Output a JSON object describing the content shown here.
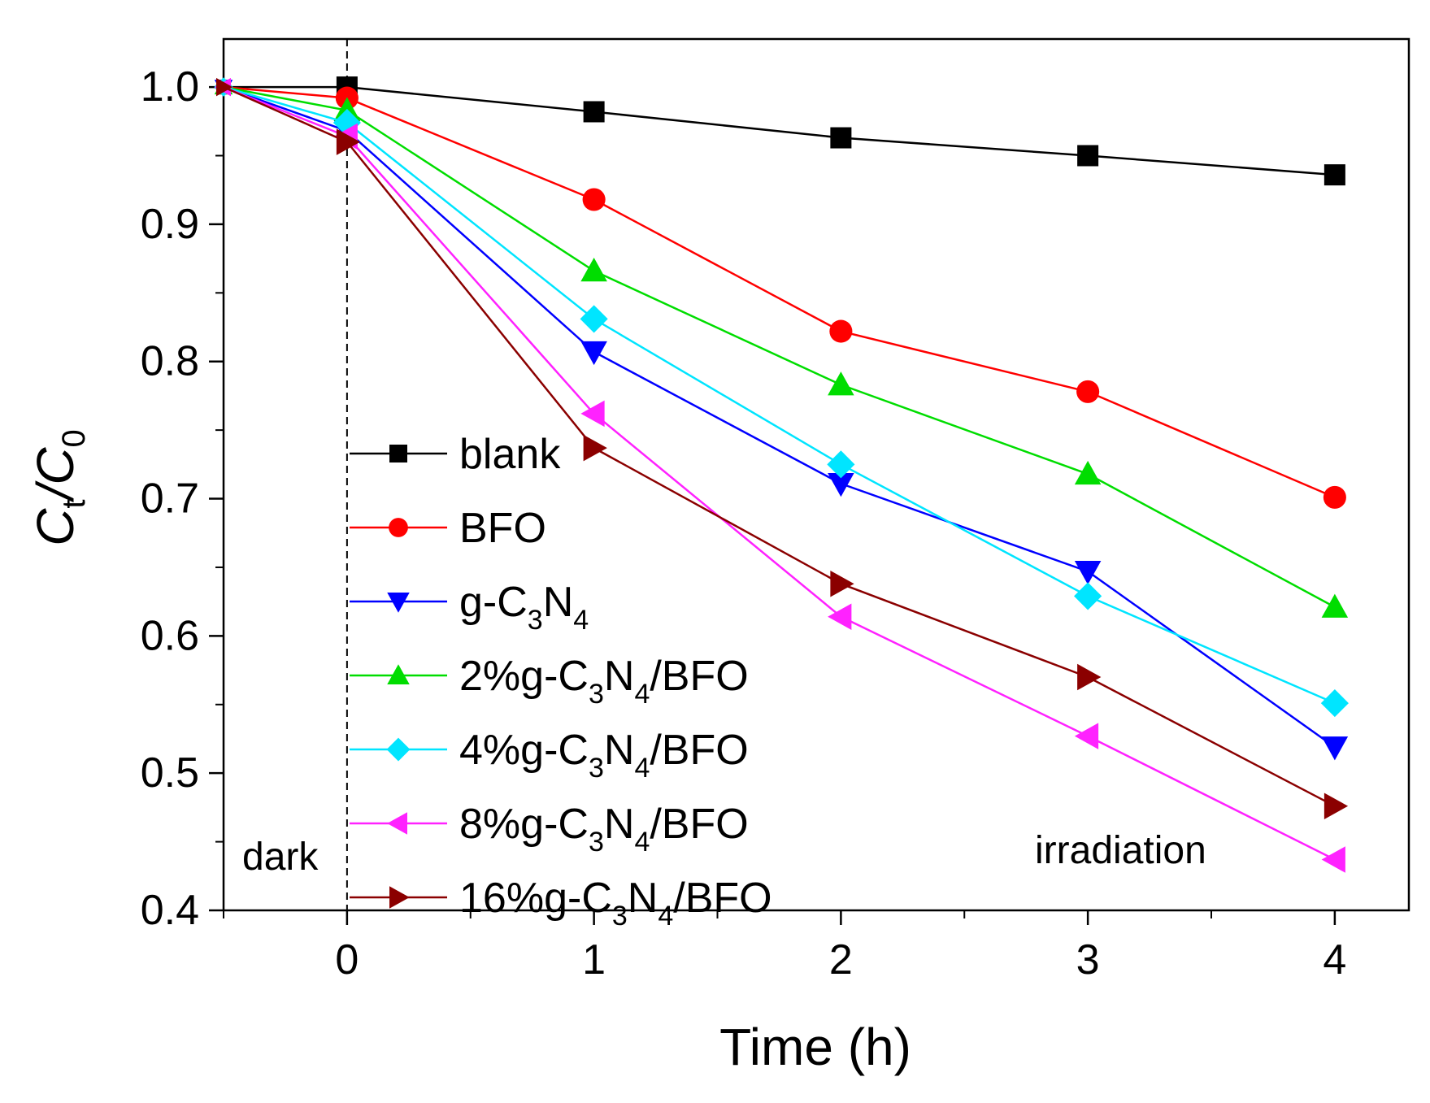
{
  "chart_data": {
    "type": "line",
    "title": "",
    "xlabel": "Time (h)",
    "ylabel": {
      "main": "C",
      "sub1": "t",
      "sep": "/C",
      "sub2": "0"
    },
    "xlim": [
      -0.5,
      4.3
    ],
    "ylim": [
      0.4,
      1.035
    ],
    "xticks": [
      0,
      1,
      2,
      3,
      4
    ],
    "xtick_labels": [
      "0",
      "1",
      "2",
      "3",
      "4"
    ],
    "yticks": [
      0.4,
      0.5,
      0.6,
      0.7,
      0.8,
      0.9,
      1.0
    ],
    "ytick_labels": [
      "0.4",
      "0.5",
      "0.6",
      "0.7",
      "0.8",
      "0.9",
      "1.0"
    ],
    "divider_x": 0,
    "annotations": {
      "dark": "dark",
      "irradiation": "irradiation"
    },
    "legend_position": "center-left",
    "series": [
      {
        "name": "blank",
        "label": {
          "pre": "blank"
        },
        "color": "#000000",
        "marker": "square",
        "x": [
          -0.5,
          0,
          1,
          2,
          3,
          4
        ],
        "values": [
          1.0,
          1.0,
          0.982,
          0.963,
          0.95,
          0.936
        ]
      },
      {
        "name": "BFO",
        "label": {
          "pre": "BFO"
        },
        "color": "#ff0000",
        "marker": "circle",
        "x": [
          -0.5,
          0,
          1,
          2,
          3,
          4
        ],
        "values": [
          1.0,
          0.992,
          0.918,
          0.822,
          0.778,
          0.701
        ]
      },
      {
        "name": "g-C3N4",
        "label": {
          "pre": "g-C",
          "s1": "3",
          "mid": "N",
          "s2": "4",
          "post": ""
        },
        "color": "#0000ff",
        "marker": "triangle-down",
        "x": [
          -0.5,
          0,
          1,
          2,
          3,
          4
        ],
        "values": [
          1.0,
          0.968,
          0.807,
          0.711,
          0.647,
          0.519
        ]
      },
      {
        "name": "2%g-C3N4/BFO",
        "label": {
          "pre": "2%g-C",
          "s1": "3",
          "mid": "N",
          "s2": "4",
          "post": "/BFO"
        },
        "color": "#00dd00",
        "marker": "triangle-up",
        "x": [
          -0.5,
          0,
          1,
          2,
          3,
          4
        ],
        "values": [
          1.0,
          0.983,
          0.866,
          0.783,
          0.718,
          0.621
        ]
      },
      {
        "name": "4%g-C3N4/BFO",
        "label": {
          "pre": "4%g-C",
          "s1": "3",
          "mid": "N",
          "s2": "4",
          "post": "/BFO"
        },
        "color": "#00e5ff",
        "marker": "diamond",
        "x": [
          -0.5,
          0,
          1,
          2,
          3,
          4
        ],
        "values": [
          1.0,
          0.974,
          0.831,
          0.725,
          0.629,
          0.551
        ]
      },
      {
        "name": "8%g-C3N4/BFO",
        "label": {
          "pre": "8%g-C",
          "s1": "3",
          "mid": "N",
          "s2": "4",
          "post": "/BFO"
        },
        "color": "#ff22ff",
        "marker": "triangle-left",
        "x": [
          -0.5,
          0,
          1,
          2,
          3,
          4
        ],
        "values": [
          1.0,
          0.964,
          0.762,
          0.614,
          0.527,
          0.437
        ]
      },
      {
        "name": "16%g-C3N4/BFO",
        "label": {
          "pre": "16%g-C",
          "s1": "3",
          "mid": "N",
          "s2": "4",
          "post": "/BFO"
        },
        "color": "#8b0000",
        "marker": "triangle-right",
        "x": [
          -0.5,
          0,
          1,
          2,
          3,
          4
        ],
        "values": [
          1.0,
          0.96,
          0.737,
          0.638,
          0.57,
          0.476
        ]
      }
    ]
  }
}
